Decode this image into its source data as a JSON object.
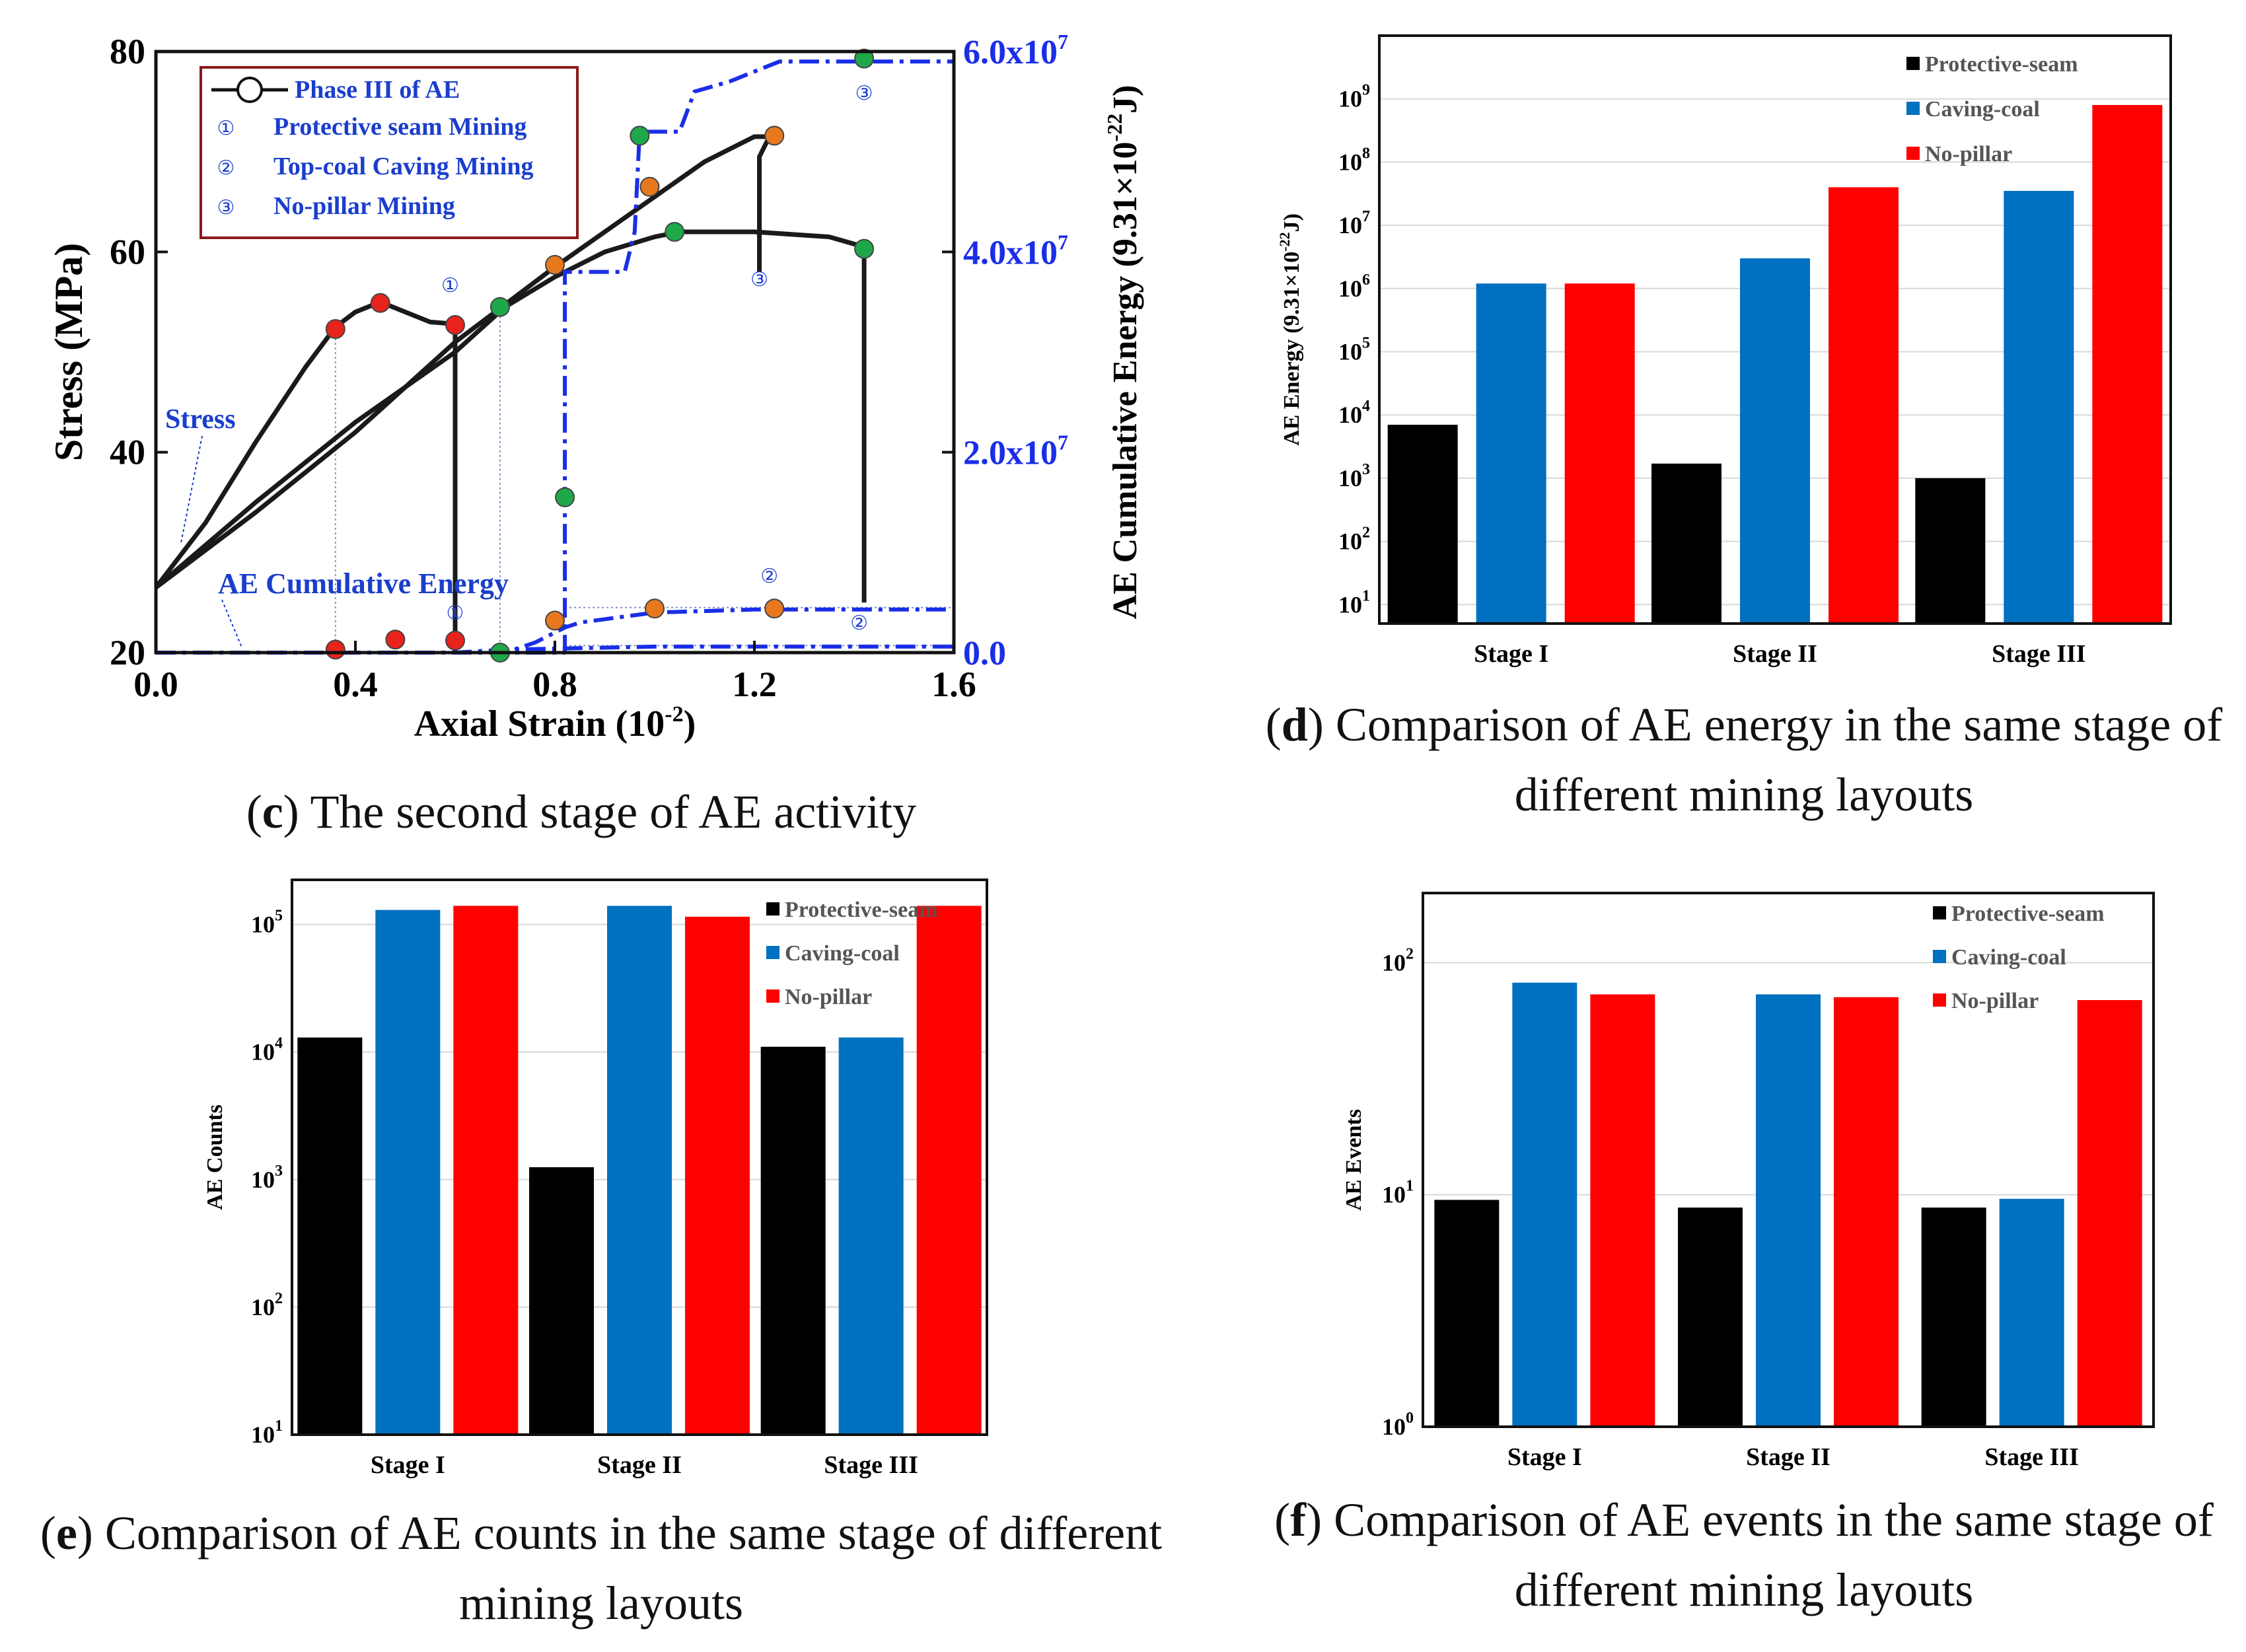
{
  "panels": {
    "c": {
      "caption_letter": "c",
      "caption_text": "The second stage of AE activity",
      "chart_data": {
        "type": "line",
        "title": "",
        "xlabel": "Axial Strain (10",
        "xlabel_exp": "-2",
        "xlabel_close": ")",
        "ylabel": "Stress (MPa)",
        "y2label": "AE Cumulative Energy (9.31×10",
        "y2label_exp": "-22",
        "y2label_close": "J)",
        "xlim": [
          0.0,
          1.6
        ],
        "ylim": [
          20,
          80
        ],
        "y2lim": [
          0,
          60000000
        ],
        "x_ticks": [
          "0.0",
          "0.4",
          "0.8",
          "1.2",
          "1.6"
        ],
        "y_ticks": [
          "20",
          "40",
          "60",
          "80"
        ],
        "y2_ticks": [
          "0.0",
          "2.0x10",
          "4.0x10",
          "6.0x10"
        ],
        "y2_tick_exp": "7",
        "series": [
          {
            "name": "Stress (Protective seam Mining)",
            "axis": "left",
            "x": [
              0.0,
              0.1,
              0.2,
              0.3,
              0.36,
              0.4,
              0.45,
              0.5,
              0.55,
              0.6,
              0.6
            ],
            "y": [
              26.5,
              33,
              41,
              48.5,
              52.5,
              54,
              55,
              54,
              53,
              52.8,
              20
            ]
          },
          {
            "name": "Stress (Top-coal Caving Mining)",
            "axis": "left",
            "x": [
              0.0,
              0.2,
              0.4,
              0.6,
              0.8,
              1.0,
              1.1,
              1.2,
              1.23,
              1.21,
              1.21
            ],
            "y": [
              26.5,
              34,
              42,
              51,
              58.5,
              65.5,
              69,
              71.5,
              71.5,
              69.5,
              58
            ]
          },
          {
            "name": "Stress (No-pillar Mining)",
            "axis": "left",
            "x": [
              0.0,
              0.2,
              0.4,
              0.6,
              0.7,
              0.8,
              0.9,
              1.0,
              1.05,
              1.2,
              1.35,
              1.42,
              1.42
            ],
            "y": [
              26.5,
              35,
              43,
              50,
              54.5,
              57.5,
              60,
              61.5,
              62,
              62,
              61.5,
              60.5,
              25
            ]
          },
          {
            "name": "AE Cumulative Energy (No-pillar Mining)",
            "axis": "right",
            "x": [
              0.0,
              0.5,
              0.8,
              0.8,
              0.82,
              0.82,
              0.94,
              0.96,
              0.97,
              1.05,
              1.08,
              1.15,
              1.25,
              1.4,
              1.6
            ],
            "y": [
              0,
              0,
              0,
              0,
              0,
              38000000,
              38000000,
              42000000,
              52000000,
              52000000,
              56000000,
              57000000,
              59000000,
              59000000,
              59000000
            ]
          },
          {
            "name": "AE Cumulative Energy (Top-coal Caving Mining)",
            "axis": "right",
            "x": [
              0.0,
              0.7,
              0.76,
              0.82,
              0.85,
              1.0,
              1.2,
              1.6
            ],
            "y": [
              0,
              0,
              1000000,
              2500000,
              3000000,
              4000000,
              4300000,
              4300000
            ]
          },
          {
            "name": "AE Cumulative Energy (Protective seam Mining)",
            "axis": "right",
            "x": [
              0.0,
              0.6,
              0.7,
              1.0,
              1.6
            ],
            "y": [
              0,
              0,
              300000,
              600000,
              600000
            ]
          }
        ],
        "markers": [
          {
            "group": "red",
            "x": [
              0.36,
              0.45,
              0.6,
              0.36,
              0.48,
              0.6
            ],
            "y": [
              52.3,
              54.9,
              52.7,
              20.3,
              21.3,
              21.2
            ]
          },
          {
            "group": "orange",
            "x": [
              0.8,
              0.99,
              1.24,
              0.8,
              1.0,
              1.24
            ],
            "y": [
              58.7,
              66.5,
              71.6,
              23.2,
              24.4,
              24.4
            ]
          },
          {
            "group": "green",
            "x": [
              0.69,
              0.97,
              1.04,
              1.42,
              1.42,
              0.82,
              0.69
            ],
            "y": [
              54.5,
              71.6,
              62,
              60.3,
              79.3,
              35.5,
              20
            ]
          }
        ],
        "point_annotations": [
          {
            "label": "①",
            "x": 0.59,
            "y": 56
          },
          {
            "label": "③",
            "x": 1.21,
            "y": 56.6
          },
          {
            "label": "③",
            "x": 1.42,
            "y": 75.2
          },
          {
            "label": "①",
            "x": 0.6,
            "y": 23.3
          },
          {
            "label": "②",
            "x": 1.23,
            "y": 27
          },
          {
            "label": "②",
            "x": 1.41,
            "y": 22.3
          }
        ],
        "legend": {
          "position": "top-left",
          "title_entry": "Phase III of AE",
          "entries": [
            {
              "num": "①",
              "label": "Protective seam Mining"
            },
            {
              "num": "②",
              "label": "Top-coal Caving Mining"
            },
            {
              "num": "③",
              "label": "No-pillar Mining"
            }
          ]
        },
        "annotations": [
          "Stress",
          "AE Cumulative Energy"
        ]
      }
    },
    "d": {
      "caption_letter": "d",
      "caption_text": "Comparison of AE energy in the same stage of different mining layouts",
      "chart_data": {
        "type": "bar",
        "scale": "log",
        "ylabel": "AE Energy (9.31×10",
        "ylabel_exp": "-22",
        "ylabel_close": "J)",
        "ylim_exp": [
          0.7,
          10
        ],
        "y_tick_exps": [
          1,
          2,
          3,
          4,
          5,
          6,
          7,
          8,
          9
        ],
        "categories": [
          "Stage I",
          "Stage II",
          "Stage III"
        ],
        "series": [
          {
            "name": "Protective-seam",
            "color": "#000000",
            "values": [
              7000,
              1700,
              1000
            ]
          },
          {
            "name": "Caving-coal",
            "color": "#0070c0",
            "values": [
              1200000,
              3000000,
              35000000
            ]
          },
          {
            "name": "No-pillar",
            "color": "#ff0000",
            "values": [
              1200000,
              40000000,
              800000000
            ]
          }
        ]
      }
    },
    "e": {
      "caption_letter": "e",
      "caption_text": "Comparison of AE counts in the same stage of different mining layouts",
      "chart_data": {
        "type": "bar",
        "scale": "log",
        "ylabel": "AE Counts",
        "ylim_exp": [
          1,
          5.35
        ],
        "y_tick_exps": [
          1,
          2,
          3,
          4,
          5
        ],
        "categories": [
          "Stage I",
          "Stage II",
          "Stage III"
        ],
        "series": [
          {
            "name": "Protective-seam",
            "color": "#000000",
            "values": [
              13000,
              1250,
              11000
            ]
          },
          {
            "name": "Caving-coal",
            "color": "#0070c0",
            "values": [
              130000,
              140000,
              13000
            ]
          },
          {
            "name": "No-pillar",
            "color": "#ff0000",
            "values": [
              140000,
              115000,
              140000
            ]
          }
        ]
      }
    },
    "f": {
      "caption_letter": "f",
      "caption_text": "Comparison of AE events in the same stage of different mining layouts",
      "chart_data": {
        "type": "bar",
        "scale": "log",
        "ylabel": "AE Events",
        "ylim_exp": [
          0,
          2.3
        ],
        "y_tick_exps": [
          0,
          1,
          2
        ],
        "categories": [
          "Stage I",
          "Stage II",
          "Stage III"
        ],
        "series": [
          {
            "name": "Protective-seam",
            "color": "#000000",
            "values": [
              9.5,
              8.8,
              8.8
            ]
          },
          {
            "name": "Caving-coal",
            "color": "#0070c0",
            "values": [
              82,
              73,
              9.6
            ]
          },
          {
            "name": "No-pillar",
            "color": "#ff0000",
            "values": [
              73,
              71,
              69
            ]
          }
        ]
      }
    }
  },
  "colors": {
    "red_marker": "#e8231c",
    "orange_marker": "#e8781e",
    "green_marker": "#1fa84a",
    "energy_line": "#1a2ee8",
    "legend_border": "#8b1a1a",
    "annot_blue": "#1a3ecc"
  }
}
